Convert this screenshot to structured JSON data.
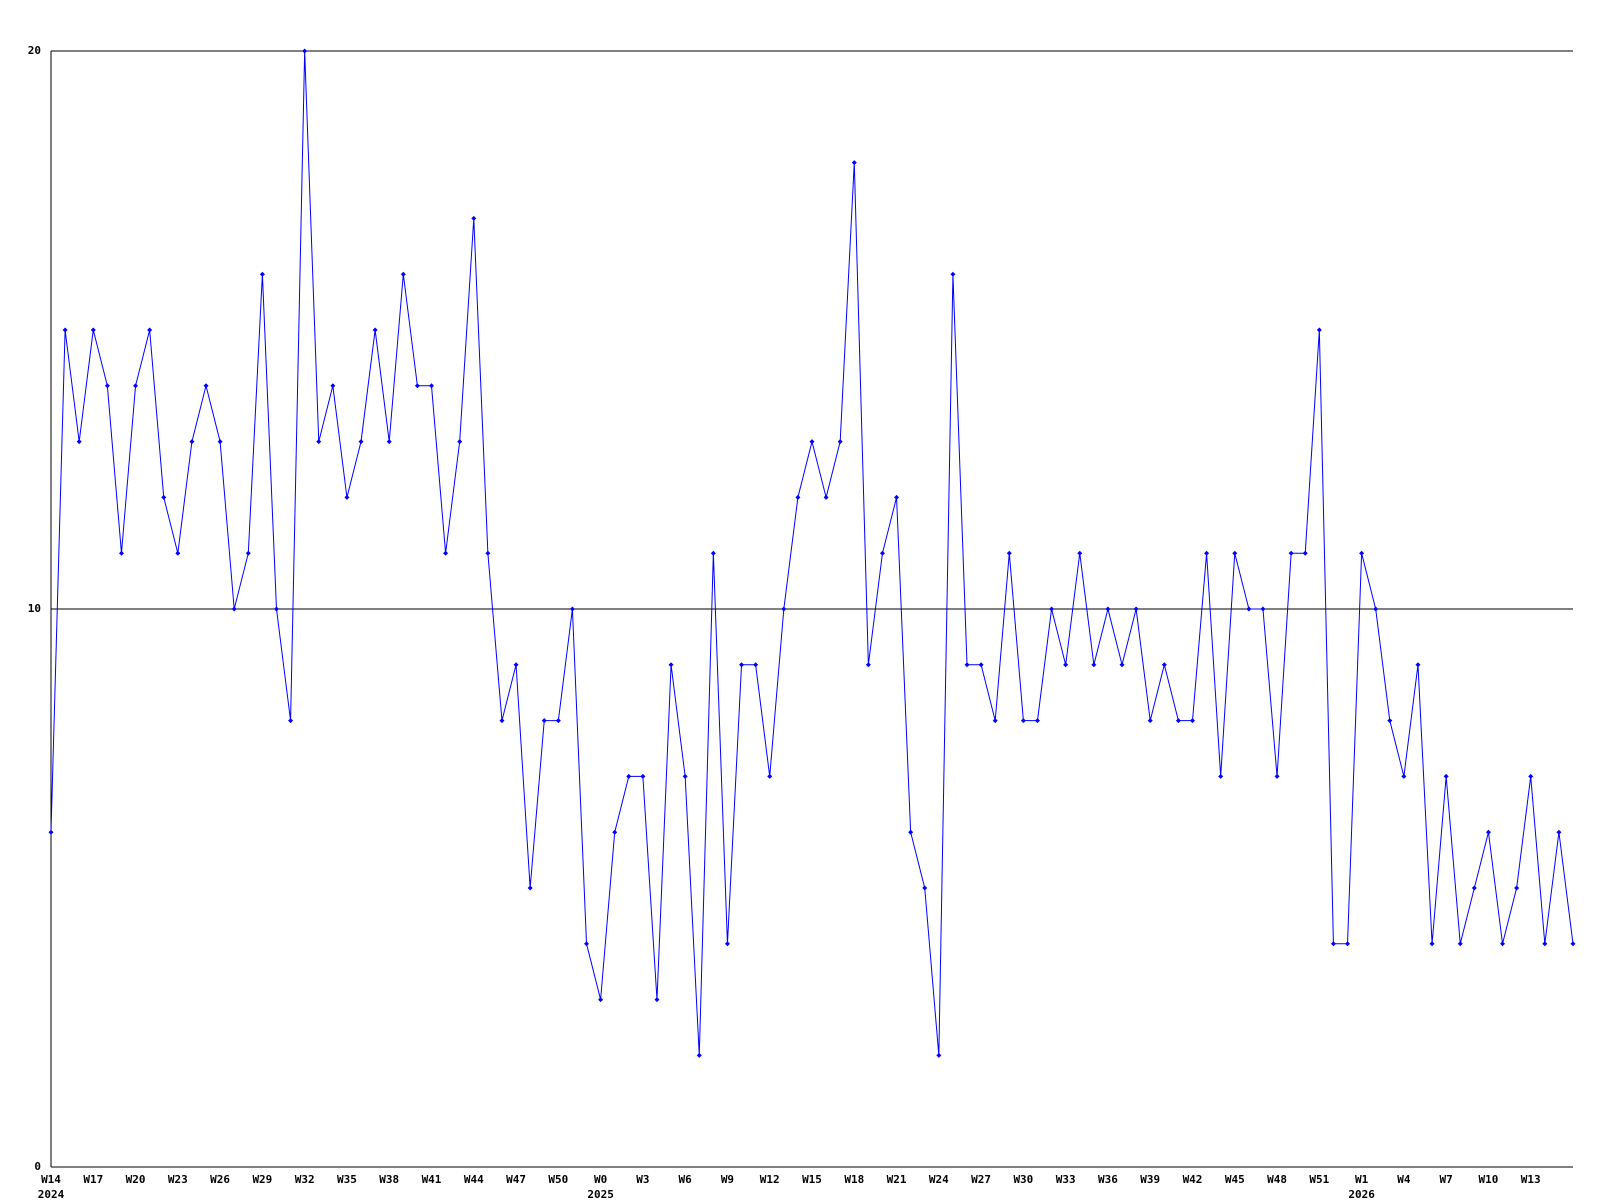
{
  "chart_data": {
    "type": "line",
    "categories": [
      "W14\n2024",
      null,
      null,
      "W17",
      null,
      null,
      "W20",
      null,
      null,
      "W23",
      null,
      null,
      "W26",
      null,
      null,
      "W29",
      null,
      null,
      "W32",
      null,
      null,
      "W35",
      null,
      null,
      "W38",
      null,
      null,
      "W41",
      null,
      null,
      "W44",
      null,
      null,
      "W47",
      null,
      null,
      "W50",
      null,
      null,
      "W0\n2025",
      null,
      null,
      "W3",
      null,
      null,
      "W6",
      null,
      null,
      "W9",
      null,
      null,
      "W12",
      null,
      null,
      "W15",
      null,
      null,
      "W18",
      null,
      null,
      "W21",
      null,
      null,
      "W24",
      null,
      null,
      "W27",
      null,
      null,
      "W30",
      null,
      null,
      "W33",
      null,
      null,
      "W36",
      null,
      null,
      "W39",
      null,
      null,
      "W42",
      null,
      null,
      "W45",
      null,
      null,
      "W48",
      null,
      null,
      "W51",
      null,
      null,
      "W1\n2026",
      null,
      null,
      "W4",
      null,
      null,
      "W7",
      null,
      null,
      "W10",
      null,
      null,
      "W13",
      null,
      null,
      null
    ],
    "series": [
      {
        "color": "#0000ff",
        "values": [
          6,
          15,
          13,
          15,
          14,
          11,
          14,
          15,
          12,
          11,
          13,
          14,
          13,
          10,
          11,
          16,
          10,
          8,
          20,
          13,
          14,
          12,
          13,
          15,
          13,
          16,
          14,
          14,
          11,
          13,
          17,
          11,
          8,
          9,
          5,
          8,
          8,
          10,
          4,
          3,
          6,
          7,
          7,
          3,
          9,
          7,
          2,
          11,
          4,
          9,
          9,
          7,
          10,
          12,
          13,
          12,
          13,
          18,
          9,
          11,
          12,
          6,
          5,
          2,
          16,
          9,
          9,
          8,
          11,
          8,
          8,
          10,
          9,
          11,
          9,
          10,
          9,
          10,
          8,
          9,
          8,
          8,
          11,
          7,
          11,
          10,
          10,
          7,
          11,
          11,
          15,
          4,
          4,
          11,
          10,
          8,
          7,
          9,
          4,
          7,
          4,
          5,
          6,
          4,
          5,
          7,
          4,
          6,
          4
        ]
      }
    ],
    "ylim": [
      0,
      20
    ],
    "yticks": [
      0,
      10,
      20
    ],
    "grid": true
  }
}
